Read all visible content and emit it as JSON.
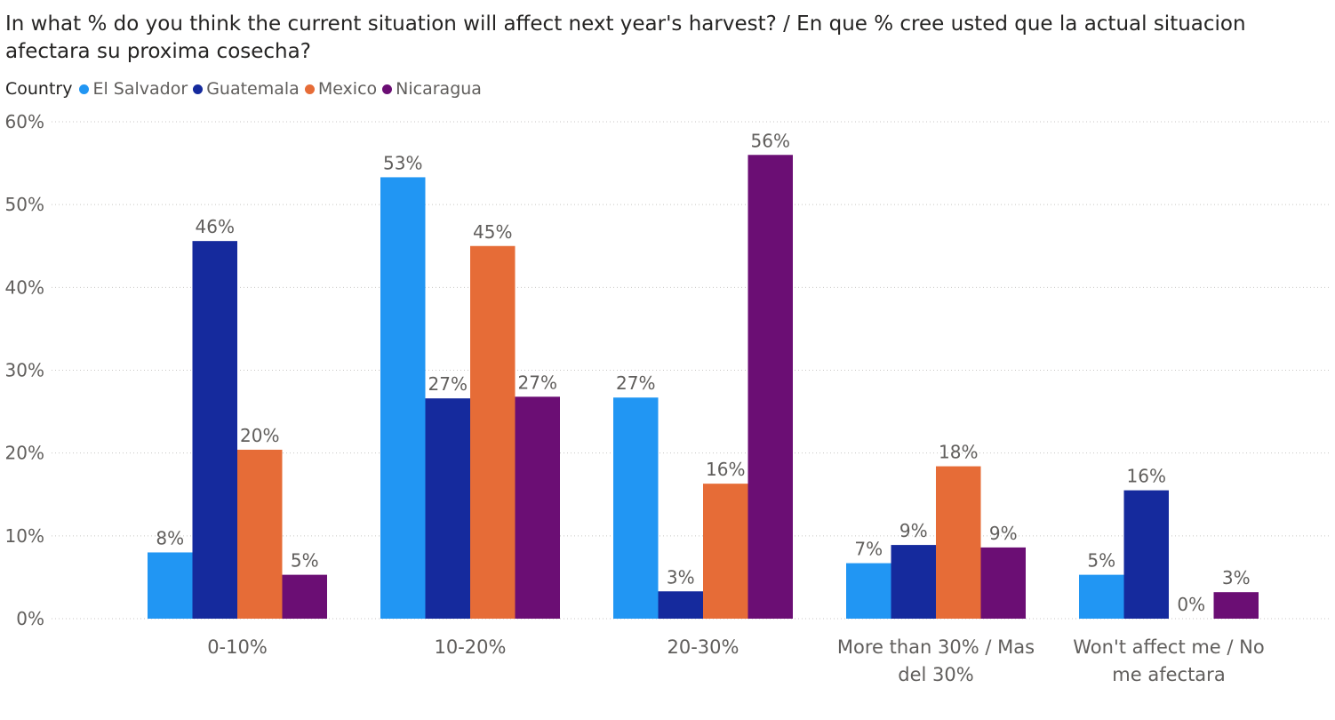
{
  "chart_data": {
    "type": "bar",
    "title": "In what % do you think the current situation will affect next year's harvest? / En que % cree usted que la actual situacion afectara su proxima cosecha?",
    "legend_title": "Country",
    "legend_position": "top-left",
    "categories": [
      "0-10%",
      "10-20%",
      "20-30%",
      "More than 30% / Mas del 30%",
      "Won't affect me / No me afectara"
    ],
    "series": [
      {
        "name": "El Salvador",
        "color": "#2196F3",
        "values": [
          8,
          53.3,
          26.7,
          6.7,
          5.3
        ],
        "labels": [
          "8%",
          "53%",
          "27%",
          "7%",
          "5%"
        ]
      },
      {
        "name": "Guatemala",
        "color": "#152A9D",
        "values": [
          45.6,
          26.6,
          3.3,
          8.9,
          15.5
        ],
        "labels": [
          "46%",
          "27%",
          "3%",
          "9%",
          "16%"
        ]
      },
      {
        "name": "Mexico",
        "color": "#E66C37",
        "values": [
          20.4,
          45,
          16.3,
          18.4,
          0
        ],
        "labels": [
          "20%",
          "45%",
          "16%",
          "18%",
          "0%"
        ]
      },
      {
        "name": "Nicaragua",
        "color": "#6B0E74",
        "values": [
          5.3,
          26.8,
          56,
          8.6,
          3.2
        ],
        "labels": [
          "5%",
          "27%",
          "56%",
          "9%",
          "3%"
        ]
      }
    ],
    "ylim": [
      0,
      60
    ],
    "yticks": [
      0,
      10,
      20,
      30,
      40,
      50,
      60
    ],
    "ytick_labels": [
      "0%",
      "10%",
      "20%",
      "30%",
      "40%",
      "50%",
      "60%"
    ],
    "grid": true,
    "xlabel": "",
    "ylabel": ""
  }
}
